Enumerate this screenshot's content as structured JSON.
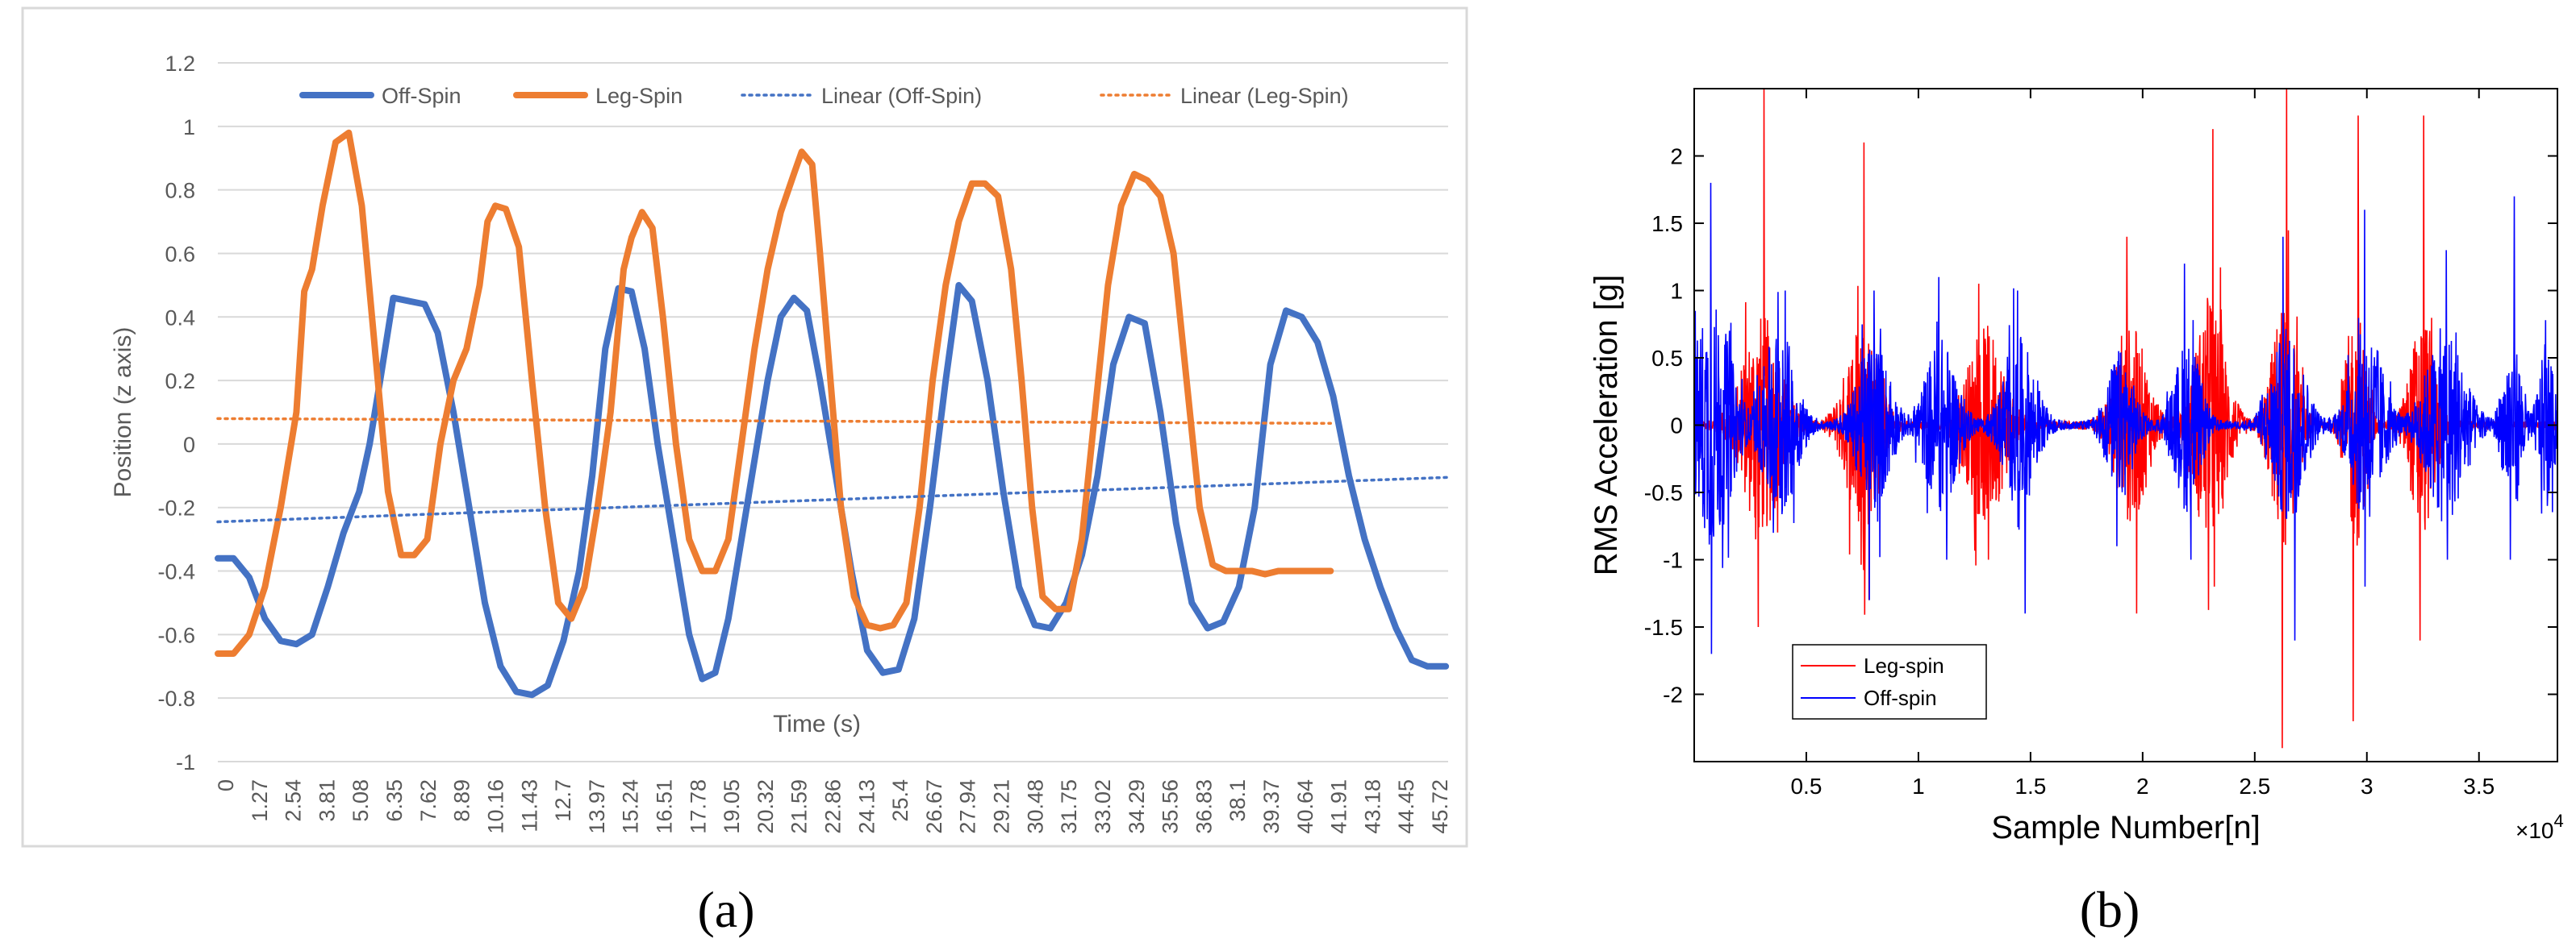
{
  "chart_data": [
    {
      "type": "line",
      "panel_label": "(a)",
      "xlabel": "Time (s)",
      "ylabel": "Position (z axis)",
      "ylim": [
        -1,
        1.2
      ],
      "yticks": [
        "1.2",
        "1",
        "0.8",
        "0.6",
        "0.4",
        "0.2",
        "0",
        "-0.2",
        "-0.4",
        "-0.6",
        "-0.8",
        "-1"
      ],
      "xtick_labels": [
        "0",
        "1.27",
        "2.54",
        "3.81",
        "5.08",
        "6.35",
        "7.62",
        "8.89",
        "10.16",
        "11.43",
        "12.7",
        "13.97",
        "15.24",
        "16.51",
        "17.78",
        "19.05",
        "20.32",
        "21.59",
        "22.86",
        "24.13",
        "25.4",
        "26.67",
        "27.94",
        "29.21",
        "30.48",
        "31.75",
        "33.02",
        "34.29",
        "35.56",
        "36.83",
        "38.1",
        "39.37",
        "40.64",
        "41.91",
        "43.18",
        "44.45",
        "45.72"
      ],
      "xlim": [
        0,
        46.99
      ],
      "grid": true,
      "legend_position": "top",
      "series": [
        {
          "name": "Off-Spin",
          "color": "#4472C4",
          "style": "solid",
          "x": [
            0,
            0.6,
            1.2,
            1.8,
            2.4,
            3.0,
            3.6,
            4.2,
            4.8,
            5.4,
            5.8,
            6.2,
            6.7,
            7.3,
            7.9,
            8.4,
            9.0,
            9.6,
            10.2,
            10.8,
            11.4,
            12.0,
            12.6,
            13.2,
            13.8,
            14.3,
            14.8,
            15.3,
            15.8,
            16.3,
            16.8,
            17.4,
            18.0,
            18.5,
            19.0,
            19.5,
            20.0,
            20.5,
            21.0,
            21.5,
            22.0,
            22.5,
            23.0,
            23.6,
            24.2,
            24.8,
            25.4,
            26.0,
            26.6,
            27.2,
            27.8,
            28.3,
            28.8,
            29.4,
            30.0,
            30.6,
            31.2,
            31.8,
            32.4,
            33.0,
            33.6,
            34.2,
            34.8,
            35.4,
            36.0,
            36.6,
            37.2,
            37.8,
            38.4,
            39.0,
            39.6,
            40.2,
            40.8,
            41.4,
            42.0,
            42.6,
            43.2,
            43.8,
            44.4,
            45.0,
            45.6,
            46.2,
            46.9
          ],
          "y": [
            -0.36,
            -0.36,
            -0.42,
            -0.55,
            -0.62,
            -0.63,
            -0.6,
            -0.45,
            -0.28,
            -0.15,
            0.0,
            0.2,
            0.46,
            0.45,
            0.44,
            0.35,
            0.1,
            -0.2,
            -0.5,
            -0.7,
            -0.78,
            -0.79,
            -0.76,
            -0.62,
            -0.4,
            -0.1,
            0.3,
            0.49,
            0.48,
            0.3,
            0.0,
            -0.3,
            -0.6,
            -0.74,
            -0.72,
            -0.55,
            -0.3,
            -0.05,
            0.2,
            0.4,
            0.46,
            0.42,
            0.2,
            -0.1,
            -0.4,
            -0.65,
            -0.72,
            -0.71,
            -0.55,
            -0.2,
            0.2,
            0.5,
            0.45,
            0.2,
            -0.15,
            -0.45,
            -0.57,
            -0.58,
            -0.5,
            -0.35,
            -0.1,
            0.25,
            0.4,
            0.38,
            0.1,
            -0.25,
            -0.5,
            -0.58,
            -0.56,
            -0.45,
            -0.2,
            0.25,
            0.42,
            0.4,
            0.32,
            0.15,
            -0.1,
            -0.3,
            -0.45,
            -0.58,
            -0.68,
            -0.7,
            -0.7
          ]
        },
        {
          "name": "Leg-Spin",
          "color": "#ED7D31",
          "style": "solid",
          "x": [
            0,
            0.6,
            1.2,
            1.8,
            2.4,
            3.0,
            3.3,
            3.6,
            4.0,
            4.5,
            5.0,
            5.5,
            6.0,
            6.5,
            7.0,
            7.5,
            8.0,
            8.5,
            9.0,
            9.5,
            10.0,
            10.3,
            10.6,
            11.0,
            11.5,
            12.0,
            12.5,
            13.0,
            13.5,
            14.0,
            14.5,
            15.0,
            15.5,
            15.8,
            16.2,
            16.6,
            17.0,
            17.5,
            18.0,
            18.5,
            19.0,
            19.5,
            20.0,
            20.5,
            21.0,
            21.5,
            22.0,
            22.3,
            22.7,
            23.0,
            23.4,
            23.8,
            24.3,
            24.8,
            25.3,
            25.8,
            26.3,
            26.8,
            27.3,
            27.8,
            28.3,
            28.8,
            29.3,
            29.8,
            30.3,
            30.7,
            31.1,
            31.5,
            32.0,
            32.5,
            33.0,
            33.5,
            34.0,
            34.5,
            35.0,
            35.5,
            36.0,
            36.5,
            37.0,
            37.5,
            38.0,
            38.5,
            39.0,
            39.5,
            40.0,
            40.5,
            41.0,
            41.5,
            42.0,
            42.5
          ],
          "y": [
            -0.66,
            -0.66,
            -0.6,
            -0.45,
            -0.2,
            0.1,
            0.48,
            0.55,
            0.75,
            0.95,
            0.98,
            0.75,
            0.3,
            -0.15,
            -0.35,
            -0.35,
            -0.3,
            0.0,
            0.2,
            0.3,
            0.5,
            0.7,
            0.75,
            0.74,
            0.62,
            0.2,
            -0.2,
            -0.5,
            -0.55,
            -0.45,
            -0.2,
            0.1,
            0.55,
            0.65,
            0.73,
            0.68,
            0.4,
            0.0,
            -0.3,
            -0.4,
            -0.4,
            -0.3,
            0.0,
            0.3,
            0.55,
            0.73,
            0.85,
            0.92,
            0.88,
            0.6,
            0.2,
            -0.2,
            -0.48,
            -0.57,
            -0.58,
            -0.57,
            -0.5,
            -0.2,
            0.2,
            0.5,
            0.7,
            0.82,
            0.82,
            0.78,
            0.55,
            0.2,
            -0.2,
            -0.48,
            -0.52,
            -0.52,
            -0.3,
            0.1,
            0.5,
            0.75,
            0.85,
            0.83,
            0.78,
            0.6,
            0.2,
            -0.2,
            -0.38,
            -0.4,
            -0.4,
            -0.4,
            -0.41,
            -0.4,
            -0.4,
            -0.4,
            -0.4,
            -0.4
          ]
        },
        {
          "name": "Linear (Off-Spin)",
          "color": "#4472C4",
          "style": "dotted",
          "x": [
            0,
            46.99
          ],
          "y": [
            -0.245,
            -0.105
          ]
        },
        {
          "name": "Linear (Leg-Spin)",
          "color": "#ED7D31",
          "style": "dotted",
          "x": [
            0,
            42.5
          ],
          "y": [
            0.08,
            0.065
          ]
        }
      ]
    },
    {
      "type": "line",
      "panel_label": "(b)",
      "xlabel": "Sample Number[n]",
      "ylabel": "RMS Acceleration [g]",
      "x_multiplier": "×10",
      "x_multiplier_exp": "4",
      "xlim": [
        0,
        3.85
      ],
      "ylim": [
        -2.5,
        2.5
      ],
      "xticks": [
        "0.5",
        "1",
        "1.5",
        "2",
        "2.5",
        "3",
        "3.5"
      ],
      "yticks": [
        "2",
        "1.5",
        "1",
        "0.5",
        "0",
        "-0.5",
        "-1",
        "-1.5",
        "-2"
      ],
      "legend_position": "bottom-left",
      "series": [
        {
          "name": "Leg-spin",
          "color": "#FF0000",
          "bursts": [
            {
              "center": 0.3,
              "width": 0.12,
              "amp": 0.9,
              "peak": 2.5,
              "trough": -1.5
            },
            {
              "center": 0.75,
              "width": 0.1,
              "amp": 0.9,
              "peak": 2.1,
              "trough": -1.3
            },
            {
              "center": 1.3,
              "width": 0.12,
              "amp": 0.8,
              "peak": 1.6,
              "trough": -1.0
            },
            {
              "center": 1.95,
              "width": 0.1,
              "amp": 0.8,
              "peak": 1.4,
              "trough": -1.4
            },
            {
              "center": 2.3,
              "width": 0.1,
              "amp": 1.0,
              "peak": 2.2,
              "trough": -1.2
            },
            {
              "center": 2.63,
              "width": 0.08,
              "amp": 1.0,
              "peak": 2.5,
              "trough": -2.4
            },
            {
              "center": 2.95,
              "width": 0.06,
              "amp": 1.0,
              "peak": 2.3,
              "trough": -2.2
            },
            {
              "center": 3.25,
              "width": 0.08,
              "amp": 0.9,
              "peak": 2.3,
              "trough": -1.6
            }
          ]
        },
        {
          "name": "Off-spin",
          "color": "#0000FF",
          "bursts": [
            {
              "center": 0.08,
              "width": 0.12,
              "amp": 1.0,
              "peak": 1.8,
              "trough": -1.7
            },
            {
              "center": 0.38,
              "width": 0.1,
              "amp": 0.8,
              "peak": 1.0,
              "trough": -0.8
            },
            {
              "center": 0.8,
              "width": 0.1,
              "amp": 0.7,
              "peak": 1.0,
              "trough": -1.3
            },
            {
              "center": 1.1,
              "width": 0.1,
              "amp": 0.7,
              "peak": 1.1,
              "trough": -1.0
            },
            {
              "center": 1.45,
              "width": 0.1,
              "amp": 0.7,
              "peak": 1.0,
              "trough": -1.4
            },
            {
              "center": 1.9,
              "width": 0.08,
              "amp": 0.6,
              "peak": 0.9,
              "trough": -0.9
            },
            {
              "center": 2.2,
              "width": 0.08,
              "amp": 0.7,
              "peak": 1.2,
              "trough": -1.0
            },
            {
              "center": 2.65,
              "width": 0.1,
              "amp": 0.8,
              "peak": 1.4,
              "trough": -1.6
            },
            {
              "center": 3.0,
              "width": 0.1,
              "amp": 0.8,
              "peak": 1.6,
              "trough": -1.2
            },
            {
              "center": 3.35,
              "width": 0.12,
              "amp": 0.8,
              "peak": 1.3,
              "trough": -1.0
            },
            {
              "center": 3.65,
              "width": 0.06,
              "amp": 0.7,
              "peak": 1.7,
              "trough": -1.0
            },
            {
              "center": 3.8,
              "width": 0.05,
              "amp": 0.6,
              "peak": 0.6,
              "trough": -0.6
            }
          ]
        }
      ]
    }
  ]
}
